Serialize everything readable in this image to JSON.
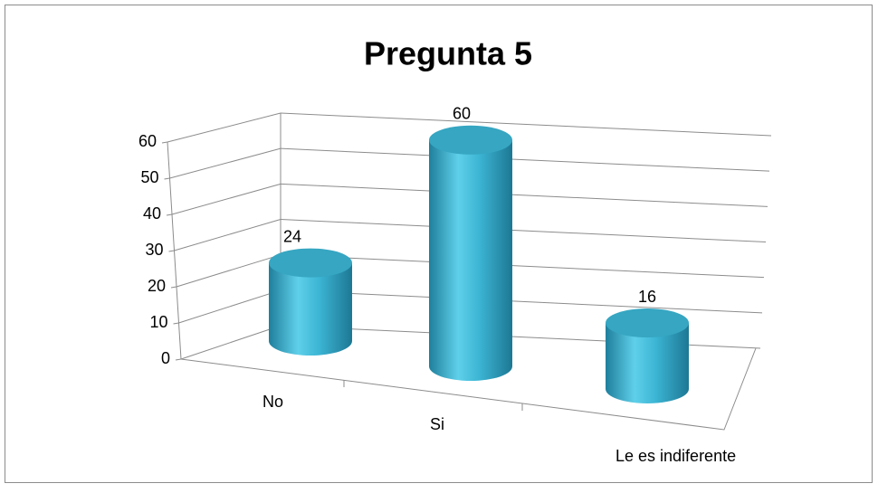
{
  "chart_data": {
    "type": "bar",
    "title": "Pregunta 5",
    "categories": [
      "No",
      "Si",
      "Le es indiferente"
    ],
    "values": [
      24,
      60,
      16
    ],
    "color": "#2fa8c8",
    "ylim": [
      0,
      60
    ],
    "yticks": [
      0,
      10,
      20,
      30,
      40,
      50,
      60
    ],
    "grid": true
  }
}
